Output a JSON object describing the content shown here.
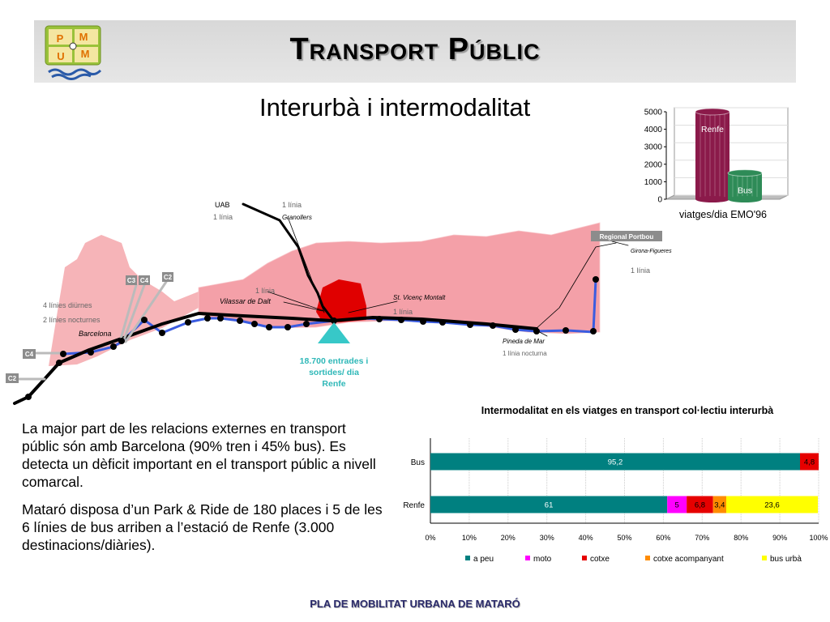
{
  "header": {
    "title": "Transport Públic",
    "logo_letters": [
      "P",
      "M",
      "U",
      "M"
    ]
  },
  "subtitle": "Interurbà i intermodalitat",
  "map": {
    "uab": "UAB",
    "uab_lines": "1 línia",
    "granollers_lines": "1 línia",
    "granollers": "Granollers",
    "regional": "Regional Portbou",
    "girona": "Girona-Figueres",
    "girona_lines": "1 línia",
    "vilassar_lines": "1 línia",
    "vilassar": "Vilassar de Dalt",
    "stvicenc": "St. Vicenç Montalt",
    "stvicenc_lines": "1 línia",
    "night_lines": "4 línies diürnes",
    "night_lines2": "2 línies nocturnes",
    "barcelona": "Barcelona",
    "pineda": "Pineda de Mar",
    "pineda_lines": "1 línia nocturna",
    "renfe_entries": [
      "18.700 entrades i",
      "sortides/ dia",
      "Renfe"
    ],
    "tags": {
      "c3": "C3",
      "c4": "C4",
      "c2": "C2",
      "c4b": "C4",
      "c2b": "C2"
    },
    "colors": {
      "area": "#f4a0a8",
      "mataro": "#e00000",
      "bus": "#3a5ce0",
      "rail": "#000000",
      "station": "#37c8c8"
    }
  },
  "chart_data": [
    {
      "type": "bar",
      "title": "",
      "xlabel": "viatges/dia EMO'96",
      "ylabel": "",
      "ylim": [
        0,
        5000
      ],
      "yticks": [
        "0",
        "1000",
        "2000",
        "3000",
        "4000",
        "5000"
      ],
      "categories": [
        "Renfe",
        "Bus"
      ],
      "values": [
        5000,
        1500
      ],
      "colors": [
        "#8b1a4a",
        "#2e8b57"
      ]
    },
    {
      "type": "bar",
      "orientation": "horizontal-stacked-percent",
      "title": "Intermodalitat en els viatges en transport col·lectiu interurbà",
      "categories": [
        "Bus",
        "Renfe"
      ],
      "xticks": [
        "0%",
        "10%",
        "20%",
        "30%",
        "40%",
        "50%",
        "60%",
        "70%",
        "80%",
        "90%",
        "100%"
      ],
      "series": [
        {
          "name": "a peu",
          "color": "#008080",
          "values": [
            95.2,
            61
          ],
          "labels": [
            "95,2",
            "61"
          ]
        },
        {
          "name": "moto",
          "color": "#ff00ff",
          "values": [
            0,
            5
          ],
          "labels": [
            "",
            "5"
          ]
        },
        {
          "name": "cotxe",
          "color": "#e60000",
          "values": [
            4.8,
            6.8
          ],
          "labels": [
            "4,8",
            "6,8"
          ]
        },
        {
          "name": "cotxe acompanyant",
          "color": "#ff8c00",
          "values": [
            0,
            3.4
          ],
          "labels": [
            "",
            "3,4"
          ]
        },
        {
          "name": "bus urbà",
          "color": "#ffff00",
          "values": [
            0,
            23.6
          ],
          "labels": [
            "",
            "23,6"
          ]
        }
      ]
    }
  ],
  "text": {
    "para1": "La major part de les relacions externes en transport públic són amb Barcelona (90% tren i 45% bus). Es detecta un dèficit important en el transport públic a nivell comarcal.",
    "para2": "Mataró disposa d’un Park & Ride de 180 places i 5 de les 6 línies de bus arriben a l’estació de Renfe (3.000 destinacions/diàries)."
  },
  "footer": "PLA DE MOBILITAT URBANA DE MATARÓ"
}
